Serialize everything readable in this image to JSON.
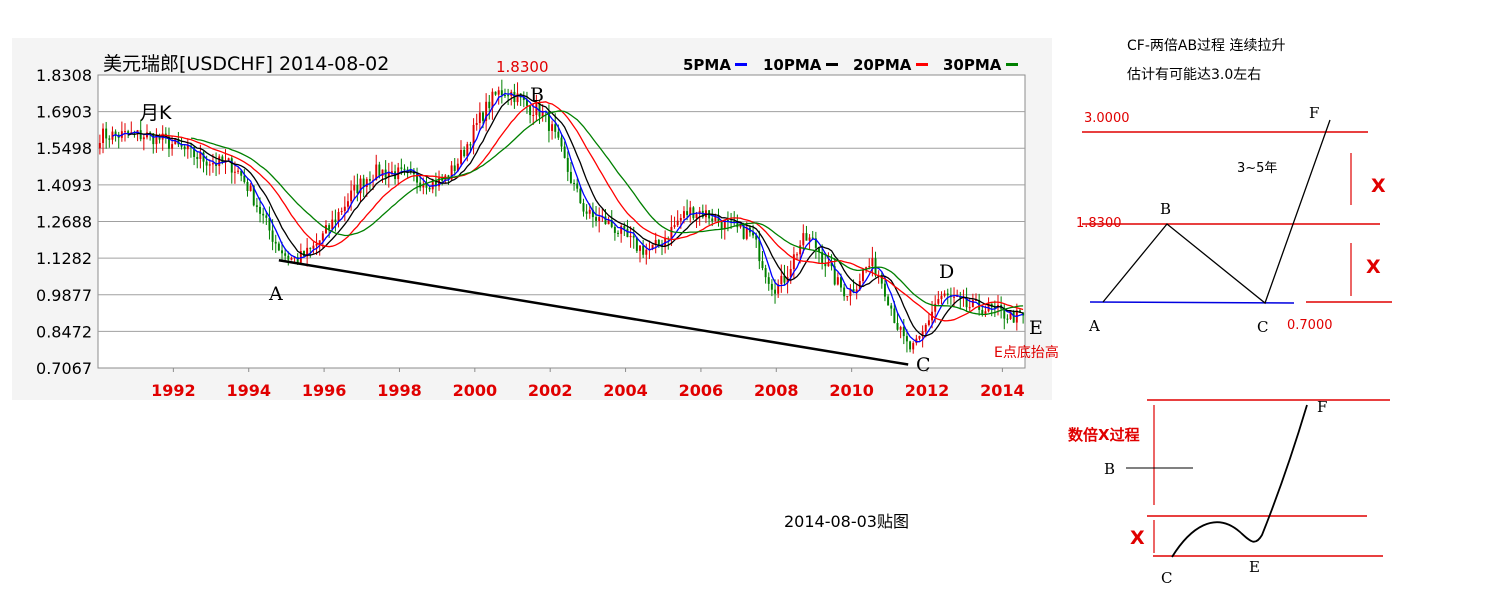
{
  "chart_data": {
    "type": "candlestick",
    "title": "美元瑞郎[USDCHF] 2014-08-02",
    "period_label": "月K",
    "peak_label": "1.8300",
    "y_ticks": [
      "1.8308",
      "1.6903",
      "1.5498",
      "1.4093",
      "1.2688",
      "1.1282",
      "0.9877",
      "0.8472",
      "0.7067"
    ],
    "y_tick_values": [
      1.8308,
      1.6903,
      1.5498,
      1.4093,
      1.2688,
      1.1282,
      0.9877,
      0.8472,
      0.7067
    ],
    "ylim": [
      0.7067,
      1.8308
    ],
    "x_ticks": [
      "1992",
      "1994",
      "1996",
      "1998",
      "2000",
      "2002",
      "2004",
      "2006",
      "2008",
      "2010",
      "2012",
      "2014"
    ],
    "xlim": [
      1990.0,
      2014.6
    ],
    "legend": [
      {
        "name": "5PMA",
        "color": "#0000ff"
      },
      {
        "name": "10PMA",
        "color": "#000000"
      },
      {
        "name": "20PMA",
        "color": "#ff0000"
      },
      {
        "name": "30PMA",
        "color": "#008000"
      }
    ],
    "key_points": [
      {
        "x": 1991.1,
        "y": 1.6
      },
      {
        "x": 1993.4,
        "y": 1.49
      },
      {
        "x": 1995.2,
        "y": 1.125
      },
      {
        "x": 1997.5,
        "y": 1.46
      },
      {
        "x": 1999.0,
        "y": 1.42
      },
      {
        "x": 2000.8,
        "y": 1.77
      },
      {
        "x": 2001.6,
        "y": 1.7
      },
      {
        "x": 2003.2,
        "y": 1.28
      },
      {
        "x": 2004.6,
        "y": 1.16
      },
      {
        "x": 2005.8,
        "y": 1.31
      },
      {
        "x": 2007.2,
        "y": 1.23
      },
      {
        "x": 2008.0,
        "y": 1.02
      },
      {
        "x": 2008.8,
        "y": 1.2
      },
      {
        "x": 2009.9,
        "y": 1.0
      },
      {
        "x": 2010.5,
        "y": 1.1
      },
      {
        "x": 2011.6,
        "y": 0.78
      },
      {
        "x": 2012.4,
        "y": 0.98
      },
      {
        "x": 2013.2,
        "y": 0.94
      },
      {
        "x": 2014.6,
        "y": 0.9
      }
    ],
    "annotations": [
      {
        "label": "A",
        "x": 1994.8,
        "y": 1.12
      },
      {
        "label": "B",
        "x": 2001.2,
        "y": 1.83
      },
      {
        "label": "C",
        "x": 2011.5,
        "y": 0.72
      },
      {
        "label": "D",
        "x": 2012.2,
        "y": 1.02
      },
      {
        "label": "E",
        "x": 2014.6,
        "y": 0.88
      }
    ],
    "e_note": "E点底抬高",
    "trendline": {
      "from": {
        "x": 1994.8,
        "y": 1.12
      },
      "to": {
        "x": 2011.5,
        "y": 0.72
      }
    }
  },
  "diagram_top": {
    "title_line1": "CF-两倍AB过程 连续拉升",
    "title_line2": "估计有可能达3.0左右",
    "level_high": "3.0000",
    "level_mid": "1.8300",
    "level_low": "0.7000",
    "duration": "3~5年",
    "x_label": "X",
    "points": [
      "A",
      "B",
      "C",
      "F"
    ]
  },
  "diagram_bottom": {
    "label": "数倍X过程",
    "x_label": "X",
    "points": [
      "B",
      "C",
      "E",
      "F"
    ]
  },
  "footer_note": "2014-08-03贴图"
}
